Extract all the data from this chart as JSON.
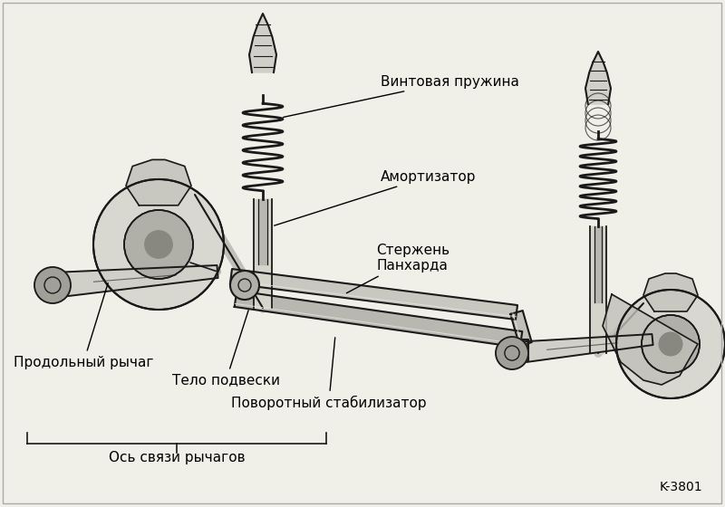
{
  "bg_color": "#f0efe8",
  "line_color": "#1a1a1a",
  "fill_light": "#e8e8e0",
  "fill_mid": "#c8c8c0",
  "fill_dark": "#888880",
  "watermark": "K-3801",
  "labels": {
    "spring": "Винтовая пружина",
    "damper": "Амортизатор",
    "panhard": "Стержень\nПанхарда",
    "trailing_arm": "Продольный рычаг",
    "body": "Тело подвески",
    "stabilizer": "Поворотный стабилизатор",
    "axle": "Ось связи рычагов"
  },
  "figsize": [
    8.0,
    5.6
  ],
  "dpi": 100
}
